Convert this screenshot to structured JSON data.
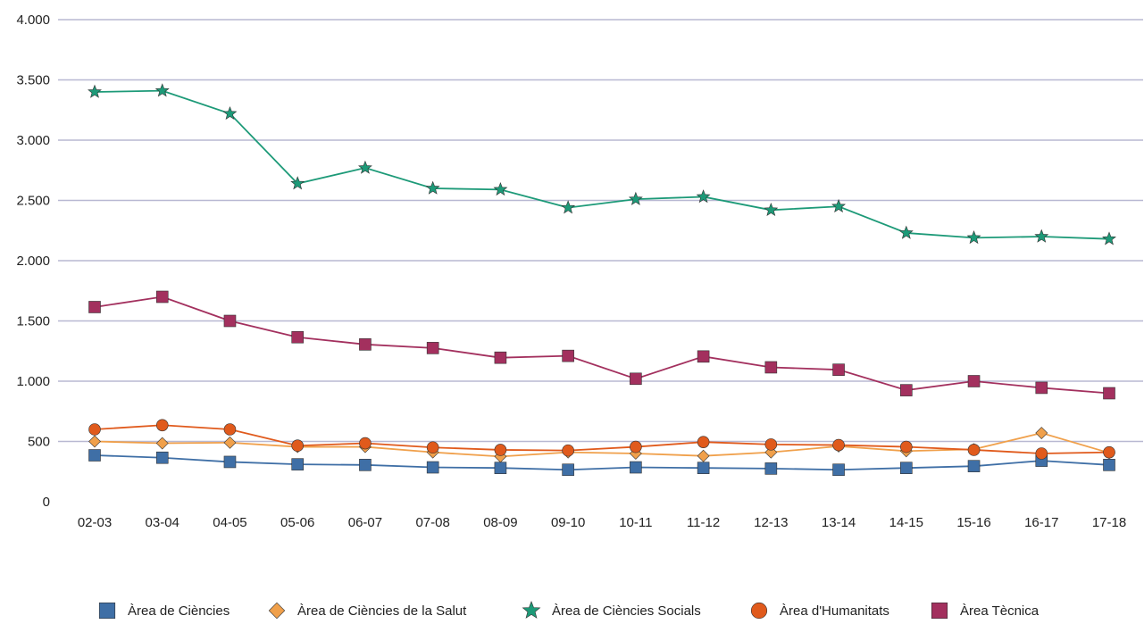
{
  "chart_data": {
    "type": "line",
    "categories": [
      "02-03",
      "03-04",
      "04-05",
      "05-06",
      "06-07",
      "07-08",
      "08-09",
      "09-10",
      "10-11",
      "11-12",
      "12-13",
      "13-14",
      "14-15",
      "15-16",
      "16-17",
      "17-18"
    ],
    "ylim": [
      0,
      4000
    ],
    "y_ticks": [
      0,
      500,
      1000,
      1500,
      2000,
      2500,
      3000,
      3500,
      4000
    ],
    "y_tick_labels": [
      "0",
      "500",
      "1.000",
      "1.500",
      "2.000",
      "2.500",
      "3.000",
      "3.500",
      "4.000"
    ],
    "grid": true,
    "legend_position": "bottom",
    "gridline_color": "#b8b8d2",
    "series": [
      {
        "name": "Àrea de Ciències",
        "color": "#3f6fa6",
        "marker": "square",
        "values": [
          385,
          365,
          330,
          310,
          305,
          285,
          280,
          265,
          285,
          280,
          275,
          265,
          280,
          295,
          340,
          305
        ]
      },
      {
        "name": "Àrea de Ciències de la Salut",
        "color": "#f0a04b",
        "marker": "diamond",
        "values": [
          500,
          485,
          490,
          455,
          455,
          410,
          375,
          410,
          400,
          380,
          410,
          460,
          420,
          435,
          570,
          405
        ]
      },
      {
        "name": "Àrea de Ciències Socials",
        "color": "#1d9a78",
        "marker": "star",
        "values": [
          3400,
          3410,
          3220,
          2640,
          2770,
          2600,
          2590,
          2440,
          2510,
          2530,
          2420,
          2450,
          2230,
          2190,
          2200,
          2180
        ]
      },
      {
        "name": "Àrea d'Humanitats",
        "color": "#e05a1c",
        "marker": "circle",
        "values": [
          600,
          635,
          600,
          465,
          485,
          450,
          430,
          425,
          455,
          495,
          475,
          470,
          455,
          430,
          400,
          410
        ]
      },
      {
        "name": "Àrea Tècnica",
        "color": "#a3305e",
        "marker": "square",
        "values": [
          1615,
          1700,
          1500,
          1365,
          1305,
          1275,
          1195,
          1210,
          1020,
          1205,
          1115,
          1095,
          925,
          1000,
          945,
          900
        ]
      }
    ]
  }
}
